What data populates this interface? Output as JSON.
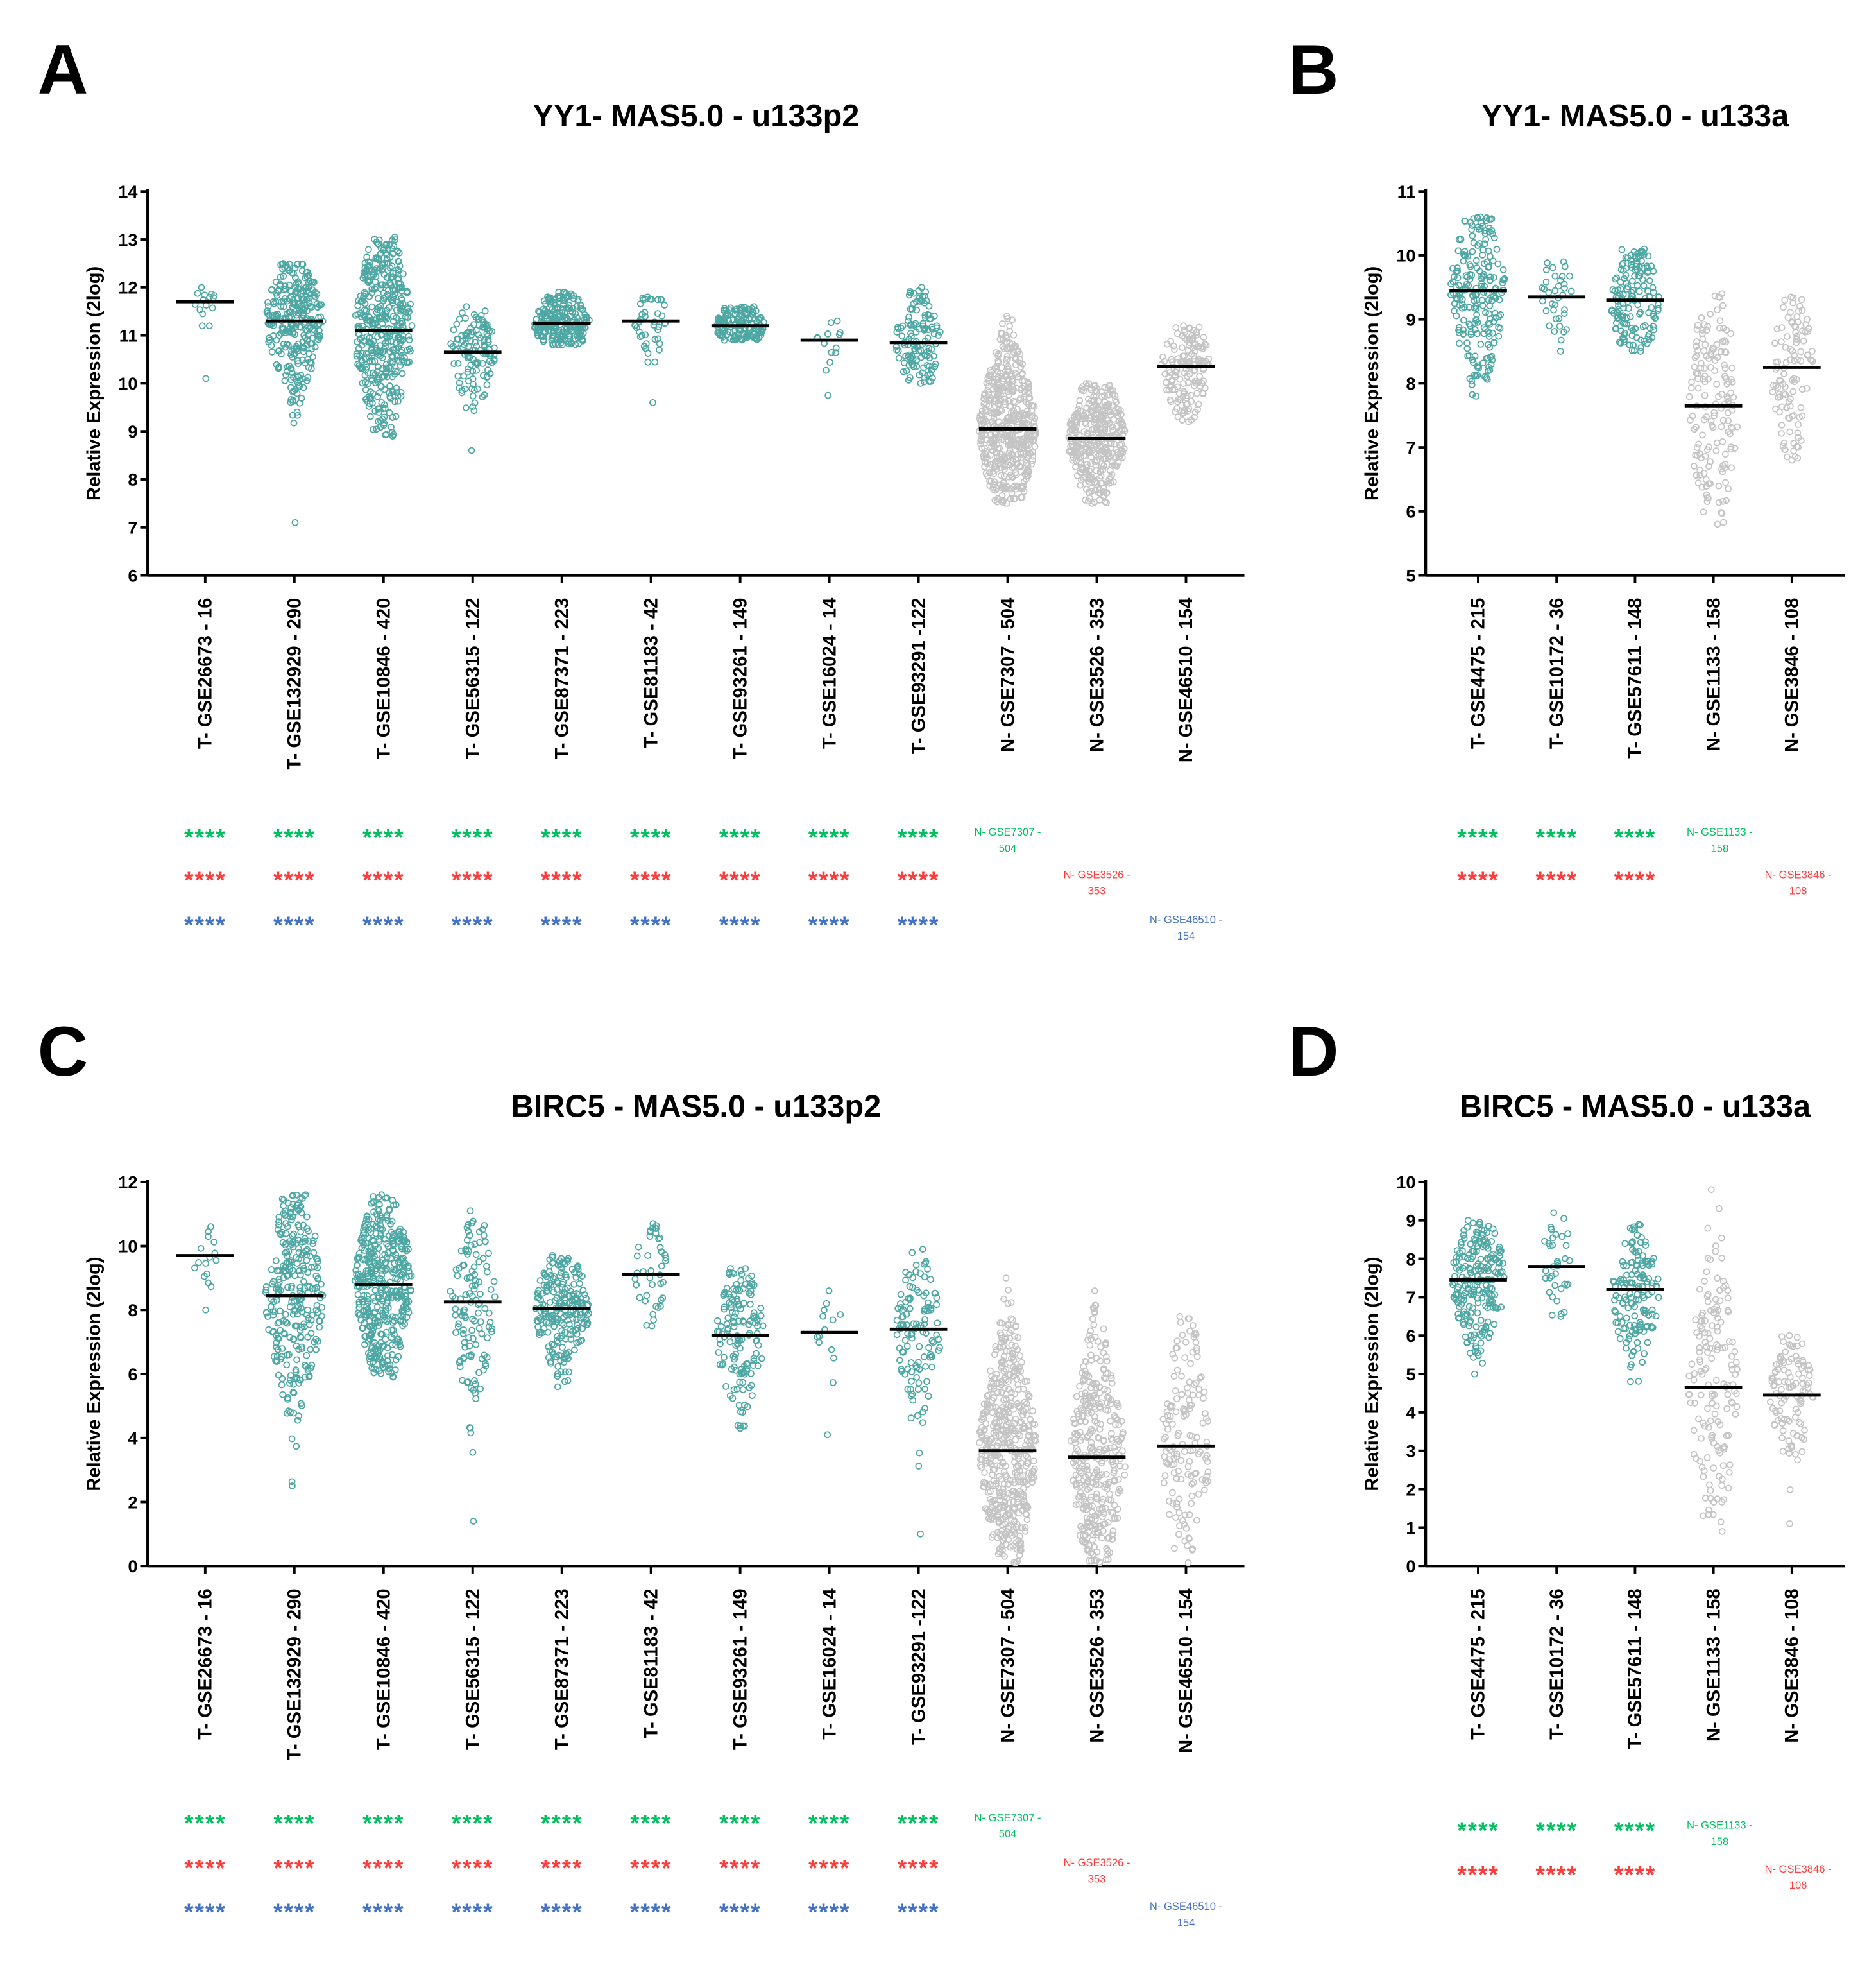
{
  "colors": {
    "tumor": "#4da7a3",
    "normal": "#c4c4c4",
    "median": "#000000",
    "green": "#00c060",
    "red": "#ff3c3c",
    "blue": "#4472c4"
  },
  "chart_data": [
    {
      "panel": "A",
      "type": "scatter",
      "title": "YY1- MAS5.0 - u133p2",
      "ylabel": "Relative Expression (2log)",
      "ylim": [
        6,
        14
      ],
      "ytick_step": 1,
      "categories": [
        "T- GSE26673 - 16",
        "T- GSE132929 - 290",
        "T- GSE10846 - 420",
        "T- GSE56315 - 122",
        "T- GSE87371 - 223",
        "T- GSE81183 - 42",
        "T- GSE93261 - 149",
        "T- GSE16024 - 14",
        "T- GSE93291 -122",
        "N- GSE7307 - 504",
        "N- GSE3526 - 353",
        "N- GSE46510 - 154"
      ],
      "group_type": [
        "T",
        "T",
        "T",
        "T",
        "T",
        "T",
        "T",
        "T",
        "T",
        "N",
        "N",
        "N"
      ],
      "n": [
        16,
        290,
        420,
        122,
        223,
        42,
        149,
        14,
        122,
        504,
        353,
        154
      ],
      "median": [
        11.7,
        11.3,
        11.1,
        10.65,
        11.25,
        11.3,
        11.2,
        10.9,
        10.85,
        9.05,
        8.85,
        10.35
      ],
      "min": [
        10.1,
        7.1,
        8.9,
        8.6,
        10.8,
        9.6,
        10.9,
        9.75,
        10.0,
        7.5,
        7.5,
        9.2
      ],
      "max": [
        12.0,
        12.5,
        13.05,
        11.6,
        11.9,
        11.8,
        11.6,
        11.3,
        12.0,
        11.4,
        10.0,
        11.2
      ],
      "significance": [
        {
          "color": "green",
          "stars": "****",
          "count": 9,
          "ref_label": "N- GSE7307 -",
          "ref_n": "504",
          "ref_group": 9
        },
        {
          "color": "red",
          "stars": "****",
          "count": 9,
          "ref_label": "N- GSE3526 -",
          "ref_n": "353",
          "ref_group": 10
        },
        {
          "color": "blue",
          "stars": "****",
          "count": 9,
          "ref_label": "N- GSE46510 -",
          "ref_n": "154",
          "ref_group": 11
        }
      ]
    },
    {
      "panel": "B",
      "type": "scatter",
      "title": "YY1- MAS5.0 - u133a",
      "ylabel": "Relative Expression (2log)",
      "ylim": [
        5,
        11
      ],
      "ytick_step": 1,
      "categories": [
        "T- GSE4475 - 215",
        "T- GSE10172 - 36",
        "T- GSE57611 - 148",
        "N- GSE1133 - 158",
        "N- GSE3846 - 108"
      ],
      "group_type": [
        "T",
        "T",
        "T",
        "N",
        "N"
      ],
      "n": [
        215,
        36,
        148,
        158,
        108
      ],
      "median": [
        9.45,
        9.35,
        9.3,
        7.65,
        8.25
      ],
      "min": [
        7.8,
        8.5,
        8.5,
        5.8,
        6.8
      ],
      "max": [
        10.6,
        9.9,
        10.1,
        9.4,
        9.35
      ],
      "significance": [
        {
          "color": "green",
          "stars": "****",
          "count": 3,
          "ref_label": "N- GSE1133 -",
          "ref_n": "158",
          "ref_group": 3
        },
        {
          "color": "red",
          "stars": "****",
          "count": 3,
          "ref_label": "N- GSE3846 -",
          "ref_n": "108",
          "ref_group": 4
        }
      ]
    },
    {
      "panel": "C",
      "type": "scatter",
      "title": "BIRC5 - MAS5.0 - u133p2",
      "ylabel": "Relative Expression (2log)",
      "ylim": [
        0,
        12
      ],
      "ytick_step": 2,
      "categories": [
        "T- GSE26673 - 16",
        "T- GSE132929 - 290",
        "T- GSE10846 - 420",
        "T- GSE56315 - 122",
        "T- GSE87371 - 223",
        "T- GSE81183 - 42",
        "T- GSE93261 - 149",
        "T- GSE16024 - 14",
        "T- GSE93291 -122",
        "N- GSE7307 - 504",
        "N- GSE3526 - 353",
        "N- GSE46510 - 154"
      ],
      "group_type": [
        "T",
        "T",
        "T",
        "T",
        "T",
        "T",
        "T",
        "T",
        "T",
        "N",
        "N",
        "N"
      ],
      "n": [
        16,
        290,
        420,
        122,
        223,
        42,
        149,
        14,
        122,
        504,
        353,
        154
      ],
      "median": [
        9.7,
        8.45,
        8.8,
        8.25,
        8.05,
        9.1,
        7.2,
        7.3,
        7.4,
        3.6,
        3.4,
        3.75
      ],
      "min": [
        8.0,
        2.5,
        5.9,
        1.4,
        5.6,
        7.5,
        4.3,
        4.1,
        1.0,
        0.1,
        0.1,
        0.1
      ],
      "max": [
        10.6,
        11.6,
        11.6,
        11.1,
        9.7,
        10.7,
        9.3,
        8.6,
        9.9,
        9.0,
        8.6,
        7.8
      ],
      "significance": [
        {
          "color": "green",
          "stars": "****",
          "count": 9,
          "ref_label": "N- GSE7307 -",
          "ref_n": "504",
          "ref_group": 9
        },
        {
          "color": "red",
          "stars": "****",
          "count": 9,
          "ref_label": "N- GSE3526 -",
          "ref_n": "353",
          "ref_group": 10
        },
        {
          "color": "blue",
          "stars": "****",
          "count": 9,
          "ref_label": "N- GSE46510 -",
          "ref_n": "154",
          "ref_group": 11
        }
      ]
    },
    {
      "panel": "D",
      "type": "scatter",
      "title": "BIRC5 - MAS5.0 - u133a",
      "ylabel": "Relative Expression (2log)",
      "ylim": [
        0,
        10
      ],
      "ytick_step": 1,
      "categories": [
        "T- GSE4475 - 215",
        "T- GSE10172 - 36",
        "T- GSE57611 - 148",
        "N- GSE1133 - 158",
        "N- GSE3846 - 108"
      ],
      "group_type": [
        "T",
        "T",
        "T",
        "N",
        "N"
      ],
      "n": [
        215,
        36,
        148,
        158,
        108
      ],
      "median": [
        7.45,
        7.8,
        7.2,
        4.65,
        4.45
      ],
      "min": [
        5.0,
        6.5,
        4.8,
        0.9,
        1.1
      ],
      "max": [
        9.0,
        9.2,
        8.9,
        9.8,
        6.0
      ],
      "significance": [
        {
          "color": "green",
          "stars": "****",
          "count": 3,
          "ref_label": "N- GSE1133 -",
          "ref_n": "158",
          "ref_group": 3
        },
        {
          "color": "red",
          "stars": "****",
          "count": 3,
          "ref_label": "N- GSE3846 -",
          "ref_n": "108",
          "ref_group": 4
        }
      ]
    }
  ]
}
